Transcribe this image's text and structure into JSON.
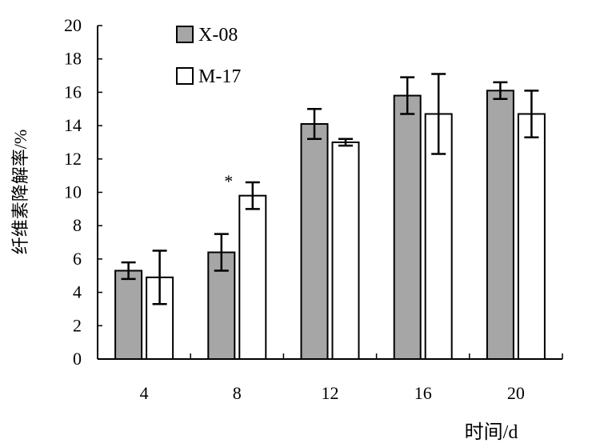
{
  "chart_data": {
    "type": "bar",
    "title": "",
    "xlabel": "时间/d",
    "ylabel": "纤维素降解率/%",
    "categories": [
      "4",
      "8",
      "12",
      "16",
      "20"
    ],
    "ylim": [
      0,
      20
    ],
    "yticks": [
      0,
      2,
      4,
      6,
      8,
      10,
      12,
      14,
      16,
      18,
      20
    ],
    "grid": false,
    "legend_position": "top-left",
    "series": [
      {
        "name": "X-08",
        "color": "#a6a6a6",
        "values": [
          5.3,
          6.4,
          14.1,
          15.8,
          16.1
        ],
        "errors": [
          0.5,
          1.1,
          0.9,
          1.1,
          0.5
        ]
      },
      {
        "name": "M-17",
        "color": "#ffffff",
        "values": [
          4.9,
          9.8,
          13.0,
          14.7,
          14.7
        ],
        "errors": [
          1.6,
          0.8,
          0.2,
          2.4,
          1.4
        ]
      }
    ],
    "annotations": [
      {
        "text": "*",
        "category": "8",
        "y": 10.7
      }
    ]
  }
}
